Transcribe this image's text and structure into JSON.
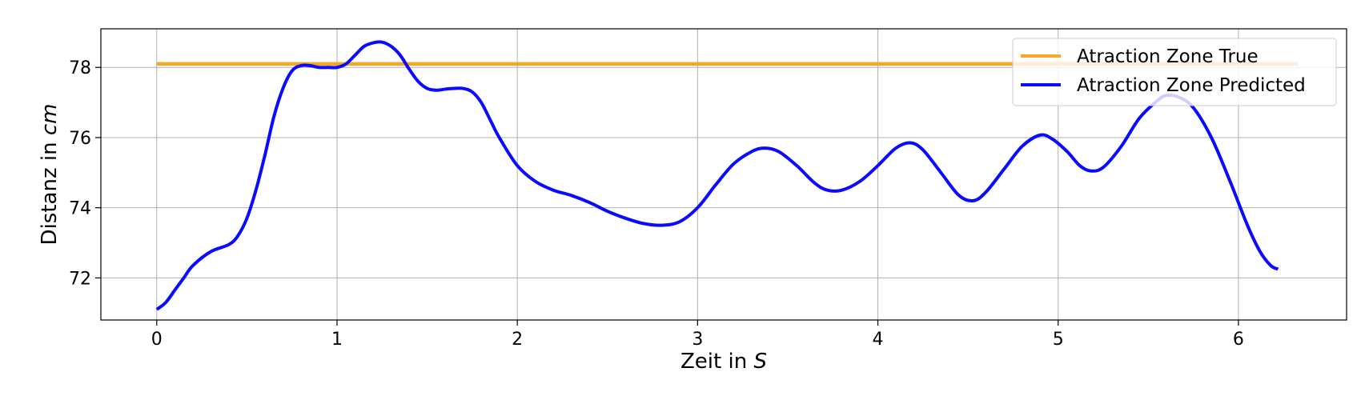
{
  "chart_data": {
    "type": "line",
    "title": "",
    "xlabel": "Zeit in ",
    "xlabel_unit": "S",
    "ylabel": "Distanz in ",
    "ylabel_unit": "cm",
    "xlim": [
      -0.31,
      6.6
    ],
    "ylim": [
      70.8,
      79.1
    ],
    "xticks": [
      0,
      1,
      2,
      3,
      4,
      5,
      6
    ],
    "yticks": [
      72,
      74,
      76,
      78
    ],
    "grid": true,
    "legend_position": "top-right",
    "series": [
      {
        "name": "Atraction Zone True",
        "color": "#f5a623",
        "x": [
          0,
          6.33
        ],
        "y": [
          78.1,
          78.1
        ]
      },
      {
        "name": "Atraction Zone Predicted",
        "color": "#0a0aff",
        "x": [
          0,
          0.05,
          0.1,
          0.15,
          0.2,
          0.3,
          0.4,
          0.45,
          0.5,
          0.55,
          0.6,
          0.65,
          0.7,
          0.75,
          0.8,
          0.85,
          0.9,
          0.95,
          1.0,
          1.05,
          1.1,
          1.15,
          1.2,
          1.25,
          1.3,
          1.35,
          1.4,
          1.45,
          1.5,
          1.55,
          1.6,
          1.65,
          1.7,
          1.75,
          1.8,
          1.85,
          1.9,
          2.0,
          2.1,
          2.2,
          2.3,
          2.4,
          2.5,
          2.6,
          2.7,
          2.8,
          2.9,
          3.0,
          3.1,
          3.2,
          3.3,
          3.37,
          3.45,
          3.55,
          3.65,
          3.72,
          3.8,
          3.9,
          4.0,
          4.1,
          4.18,
          4.25,
          4.35,
          4.45,
          4.53,
          4.6,
          4.7,
          4.8,
          4.9,
          4.97,
          5.05,
          5.12,
          5.18,
          5.25,
          5.35,
          5.45,
          5.55,
          5.6,
          5.67,
          5.75,
          5.85,
          5.95,
          6.05,
          6.12,
          6.18,
          6.22
        ],
        "y": [
          71.1,
          71.3,
          71.65,
          72.0,
          72.35,
          72.75,
          72.95,
          73.2,
          73.7,
          74.5,
          75.5,
          76.6,
          77.4,
          77.9,
          78.05,
          78.05,
          78.0,
          78.0,
          78.0,
          78.1,
          78.35,
          78.6,
          78.7,
          78.72,
          78.6,
          78.35,
          77.95,
          77.6,
          77.4,
          77.35,
          77.38,
          77.4,
          77.4,
          77.3,
          77.0,
          76.5,
          76.0,
          75.2,
          74.75,
          74.5,
          74.35,
          74.15,
          73.9,
          73.7,
          73.55,
          73.5,
          73.6,
          74.0,
          74.65,
          75.25,
          75.6,
          75.7,
          75.6,
          75.2,
          74.7,
          74.5,
          74.5,
          74.75,
          75.2,
          75.7,
          75.85,
          75.65,
          75.0,
          74.35,
          74.2,
          74.45,
          75.1,
          75.75,
          76.07,
          75.95,
          75.6,
          75.2,
          75.05,
          75.15,
          75.75,
          76.55,
          77.05,
          77.2,
          77.15,
          76.85,
          76.0,
          74.8,
          73.5,
          72.75,
          72.35,
          72.25
        ]
      }
    ]
  }
}
